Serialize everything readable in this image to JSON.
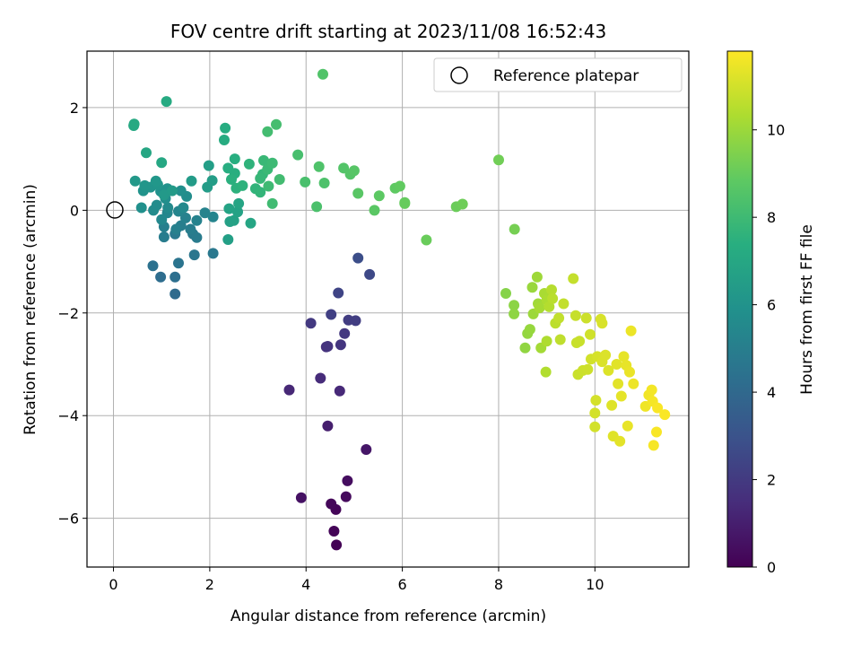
{
  "chart_data": {
    "type": "scatter",
    "title": "FOV centre drift starting at 2023/11/08 16:52:43",
    "xlabel": "Angular distance from reference (arcmin)",
    "ylabel": "Rotation from reference (arcmin)",
    "xlim": [
      -0.55,
      11.95
    ],
    "ylim": [
      -6.95,
      3.1
    ],
    "xticks": [
      0,
      2,
      4,
      6,
      8,
      10
    ],
    "yticks": [
      -6,
      -4,
      -2,
      0,
      2
    ],
    "grid": true,
    "legend": {
      "placement": "top-right",
      "entries": [
        "Reference platepar"
      ]
    },
    "reference_point": {
      "x": 0,
      "y": 0
    },
    "colorbar": {
      "label": "Hours from first FF file",
      "colormap": "viridis",
      "range": [
        0,
        11.8
      ],
      "ticks": [
        0,
        2,
        4,
        6,
        8,
        10
      ]
    },
    "points": [
      {
        "x": 4.63,
        "y": -6.52,
        "c": 0.05
      },
      {
        "x": 4.58,
        "y": -6.25,
        "c": 0.1
      },
      {
        "x": 4.62,
        "y": -5.83,
        "c": 0.15
      },
      {
        "x": 4.52,
        "y": -5.72,
        "c": 0.2
      },
      {
        "x": 4.83,
        "y": -5.58,
        "c": 0.3
      },
      {
        "x": 4.86,
        "y": -5.27,
        "c": 0.4
      },
      {
        "x": 3.9,
        "y": -5.6,
        "c": 0.55
      },
      {
        "x": 5.25,
        "y": -4.66,
        "c": 0.7
      },
      {
        "x": 4.45,
        "y": -4.2,
        "c": 1.0
      },
      {
        "x": 3.65,
        "y": -3.5,
        "c": 1.3
      },
      {
        "x": 4.7,
        "y": -3.52,
        "c": 1.35
      },
      {
        "x": 4.3,
        "y": -3.27,
        "c": 1.45
      },
      {
        "x": 4.42,
        "y": -2.66,
        "c": 1.65
      },
      {
        "x": 4.45,
        "y": -2.65,
        "c": 1.75
      },
      {
        "x": 4.72,
        "y": -2.62,
        "c": 1.8
      },
      {
        "x": 4.8,
        "y": -2.4,
        "c": 1.9
      },
      {
        "x": 4.1,
        "y": -2.2,
        "c": 1.95
      },
      {
        "x": 4.88,
        "y": -2.14,
        "c": 2.1
      },
      {
        "x": 5.03,
        "y": -2.15,
        "c": 2.15
      },
      {
        "x": 4.52,
        "y": -2.03,
        "c": 2.25
      },
      {
        "x": 4.67,
        "y": -1.61,
        "c": 2.4
      },
      {
        "x": 5.32,
        "y": -1.25,
        "c": 2.6
      },
      {
        "x": 5.08,
        "y": -0.93,
        "c": 2.8
      },
      {
        "x": 1.28,
        "y": -1.63,
        "c": 4.1
      },
      {
        "x": 0.98,
        "y": -1.3,
        "c": 4.2
      },
      {
        "x": 1.28,
        "y": -1.3,
        "c": 4.3
      },
      {
        "x": 0.82,
        "y": -1.08,
        "c": 4.4
      },
      {
        "x": 1.35,
        "y": -1.03,
        "c": 4.5
      },
      {
        "x": 1.68,
        "y": -0.87,
        "c": 4.6
      },
      {
        "x": 2.07,
        "y": -0.84,
        "c": 4.7
      },
      {
        "x": 1.28,
        "y": -0.46,
        "c": 4.75
      },
      {
        "x": 1.65,
        "y": -0.46,
        "c": 4.8
      },
      {
        "x": 1.73,
        "y": -0.53,
        "c": 4.85
      },
      {
        "x": 1.05,
        "y": -0.52,
        "c": 4.9
      },
      {
        "x": 1.6,
        "y": -0.37,
        "c": 4.95
      },
      {
        "x": 1.4,
        "y": -0.3,
        "c": 5.0
      },
      {
        "x": 1.05,
        "y": -0.32,
        "c": 5.05
      },
      {
        "x": 1.3,
        "y": -0.37,
        "c": 5.1
      },
      {
        "x": 1.5,
        "y": -0.15,
        "c": 5.15
      },
      {
        "x": 1.73,
        "y": -0.2,
        "c": 5.2
      },
      {
        "x": 1.9,
        "y": -0.05,
        "c": 5.25
      },
      {
        "x": 2.07,
        "y": -0.13,
        "c": 5.3
      },
      {
        "x": 1.35,
        "y": -0.02,
        "c": 5.35
      },
      {
        "x": 1.12,
        "y": -0.05,
        "c": 5.4
      },
      {
        "x": 1.0,
        "y": -0.18,
        "c": 5.45
      },
      {
        "x": 1.45,
        "y": 0.05,
        "c": 5.5
      },
      {
        "x": 1.13,
        "y": 0.05,
        "c": 5.55
      },
      {
        "x": 0.83,
        "y": 0.0,
        "c": 5.6
      },
      {
        "x": 0.9,
        "y": 0.1,
        "c": 5.65
      },
      {
        "x": 1.52,
        "y": 0.27,
        "c": 5.7
      },
      {
        "x": 1.08,
        "y": 0.23,
        "c": 5.75
      },
      {
        "x": 1.4,
        "y": 0.38,
        "c": 5.8
      },
      {
        "x": 0.58,
        "y": 0.05,
        "c": 5.85
      },
      {
        "x": 0.98,
        "y": 0.37,
        "c": 5.9
      },
      {
        "x": 1.12,
        "y": 0.42,
        "c": 5.95
      },
      {
        "x": 0.62,
        "y": 0.38,
        "c": 6.0
      },
      {
        "x": 0.77,
        "y": 0.45,
        "c": 6.05
      },
      {
        "x": 0.92,
        "y": 0.5,
        "c": 6.1
      },
      {
        "x": 0.65,
        "y": 0.48,
        "c": 6.15
      },
      {
        "x": 0.88,
        "y": 0.57,
        "c": 6.2
      },
      {
        "x": 0.45,
        "y": 0.57,
        "c": 6.25
      },
      {
        "x": 1.05,
        "y": 0.3,
        "c": 6.3
      },
      {
        "x": 1.22,
        "y": 0.38,
        "c": 6.35
      },
      {
        "x": 1.62,
        "y": 0.57,
        "c": 6.4
      },
      {
        "x": 1.95,
        "y": 0.45,
        "c": 6.45
      },
      {
        "x": 2.05,
        "y": 0.58,
        "c": 6.5
      },
      {
        "x": 1.98,
        "y": 0.87,
        "c": 6.55
      },
      {
        "x": 2.38,
        "y": -0.57,
        "c": 6.6
      },
      {
        "x": 2.42,
        "y": -0.22,
        "c": 6.65
      },
      {
        "x": 2.5,
        "y": -0.2,
        "c": 6.7
      },
      {
        "x": 2.58,
        "y": -0.03,
        "c": 6.75
      },
      {
        "x": 2.4,
        "y": 0.03,
        "c": 6.8
      },
      {
        "x": 2.6,
        "y": 0.13,
        "c": 6.85
      },
      {
        "x": 2.85,
        "y": -0.25,
        "c": 6.9
      },
      {
        "x": 0.68,
        "y": 1.12,
        "c": 6.95
      },
      {
        "x": 1.0,
        "y": 0.93,
        "c": 7.0
      },
      {
        "x": 0.42,
        "y": 1.65,
        "c": 7.05
      },
      {
        "x": 0.43,
        "y": 1.68,
        "c": 7.1
      },
      {
        "x": 1.1,
        "y": 2.12,
        "c": 7.15
      },
      {
        "x": 2.3,
        "y": 1.37,
        "c": 7.2
      },
      {
        "x": 2.32,
        "y": 1.6,
        "c": 7.25
      },
      {
        "x": 2.38,
        "y": 0.82,
        "c": 7.3
      },
      {
        "x": 2.52,
        "y": 1.0,
        "c": 7.35
      },
      {
        "x": 2.52,
        "y": 0.72,
        "c": 7.4
      },
      {
        "x": 2.45,
        "y": 0.6,
        "c": 7.45
      },
      {
        "x": 2.55,
        "y": 0.43,
        "c": 7.5
      },
      {
        "x": 2.68,
        "y": 0.48,
        "c": 7.55
      },
      {
        "x": 2.82,
        "y": 0.9,
        "c": 7.6
      },
      {
        "x": 2.95,
        "y": 0.42,
        "c": 7.65
      },
      {
        "x": 3.05,
        "y": 0.35,
        "c": 7.7
      },
      {
        "x": 3.1,
        "y": 0.7,
        "c": 7.75
      },
      {
        "x": 3.05,
        "y": 0.62,
        "c": 7.8
      },
      {
        "x": 3.12,
        "y": 0.97,
        "c": 7.85
      },
      {
        "x": 3.2,
        "y": 0.8,
        "c": 7.9
      },
      {
        "x": 3.3,
        "y": 0.92,
        "c": 7.95
      },
      {
        "x": 3.22,
        "y": 0.47,
        "c": 8.0
      },
      {
        "x": 3.3,
        "y": 0.13,
        "c": 8.05
      },
      {
        "x": 3.45,
        "y": 0.6,
        "c": 8.1
      },
      {
        "x": 3.2,
        "y": 1.53,
        "c": 8.15
      },
      {
        "x": 3.38,
        "y": 1.67,
        "c": 8.2
      },
      {
        "x": 3.83,
        "y": 1.08,
        "c": 8.25
      },
      {
        "x": 3.98,
        "y": 0.55,
        "c": 8.3
      },
      {
        "x": 4.22,
        "y": 0.07,
        "c": 8.35
      },
      {
        "x": 4.38,
        "y": 0.53,
        "c": 8.4
      },
      {
        "x": 4.27,
        "y": 0.85,
        "c": 8.45
      },
      {
        "x": 4.35,
        "y": 2.65,
        "c": 8.5
      },
      {
        "x": 4.78,
        "y": 0.82,
        "c": 8.55
      },
      {
        "x": 4.92,
        "y": 0.7,
        "c": 8.6
      },
      {
        "x": 5.0,
        "y": 0.77,
        "c": 8.65
      },
      {
        "x": 5.08,
        "y": 0.33,
        "c": 8.7
      },
      {
        "x": 5.42,
        "y": 0.0,
        "c": 8.75
      },
      {
        "x": 5.52,
        "y": 0.28,
        "c": 8.8
      },
      {
        "x": 5.85,
        "y": 0.43,
        "c": 8.85
      },
      {
        "x": 5.95,
        "y": 0.47,
        "c": 8.9
      },
      {
        "x": 6.05,
        "y": 0.15,
        "c": 8.95
      },
      {
        "x": 6.05,
        "y": 0.13,
        "c": 9.0
      },
      {
        "x": 6.5,
        "y": -0.58,
        "c": 9.05
      },
      {
        "x": 7.12,
        "y": 0.07,
        "c": 9.1
      },
      {
        "x": 7.25,
        "y": 0.12,
        "c": 9.15
      },
      {
        "x": 8.0,
        "y": 0.98,
        "c": 9.2
      },
      {
        "x": 8.33,
        "y": -0.37,
        "c": 9.3
      },
      {
        "x": 8.15,
        "y": -1.62,
        "c": 9.6
      },
      {
        "x": 8.32,
        "y": -1.85,
        "c": 9.7
      },
      {
        "x": 8.32,
        "y": -2.02,
        "c": 9.75
      },
      {
        "x": 8.55,
        "y": -2.68,
        "c": 9.8
      },
      {
        "x": 8.6,
        "y": -2.4,
        "c": 9.85
      },
      {
        "x": 8.65,
        "y": -2.32,
        "c": 9.9
      },
      {
        "x": 8.7,
        "y": -1.5,
        "c": 9.95
      },
      {
        "x": 8.72,
        "y": -2.02,
        "c": 10.0
      },
      {
        "x": 8.8,
        "y": -1.3,
        "c": 10.05
      },
      {
        "x": 8.82,
        "y": -1.82,
        "c": 10.1
      },
      {
        "x": 8.88,
        "y": -2.68,
        "c": 10.15
      },
      {
        "x": 8.85,
        "y": -1.9,
        "c": 10.2
      },
      {
        "x": 8.95,
        "y": -1.62,
        "c": 10.25
      },
      {
        "x": 9.0,
        "y": -1.75,
        "c": 10.3
      },
      {
        "x": 9.0,
        "y": -2.55,
        "c": 10.35
      },
      {
        "x": 8.98,
        "y": -3.15,
        "c": 10.4
      },
      {
        "x": 9.05,
        "y": -1.88,
        "c": 10.45
      },
      {
        "x": 9.1,
        "y": -1.55,
        "c": 10.5
      },
      {
        "x": 9.12,
        "y": -1.72,
        "c": 10.55
      },
      {
        "x": 9.18,
        "y": -2.2,
        "c": 10.6
      },
      {
        "x": 9.28,
        "y": -2.52,
        "c": 10.65
      },
      {
        "x": 9.25,
        "y": -2.1,
        "c": 10.7
      },
      {
        "x": 9.35,
        "y": -1.82,
        "c": 10.72
      },
      {
        "x": 9.55,
        "y": -1.33,
        "c": 10.75
      },
      {
        "x": 9.6,
        "y": -2.05,
        "c": 10.78
      },
      {
        "x": 9.62,
        "y": -2.58,
        "c": 10.8
      },
      {
        "x": 9.68,
        "y": -2.55,
        "c": 10.82
      },
      {
        "x": 9.65,
        "y": -3.2,
        "c": 10.85
      },
      {
        "x": 9.75,
        "y": -3.12,
        "c": 10.88
      },
      {
        "x": 9.82,
        "y": -2.1,
        "c": 10.9
      },
      {
        "x": 9.85,
        "y": -3.1,
        "c": 10.92
      },
      {
        "x": 9.9,
        "y": -2.42,
        "c": 10.95
      },
      {
        "x": 9.92,
        "y": -2.9,
        "c": 10.98
      },
      {
        "x": 10.0,
        "y": -4.22,
        "c": 11.0
      },
      {
        "x": 10.0,
        "y": -3.95,
        "c": 11.02
      },
      {
        "x": 10.02,
        "y": -3.7,
        "c": 11.05
      },
      {
        "x": 10.05,
        "y": -2.85,
        "c": 11.08
      },
      {
        "x": 10.12,
        "y": -2.12,
        "c": 11.1
      },
      {
        "x": 10.15,
        "y": -2.2,
        "c": 11.12
      },
      {
        "x": 10.15,
        "y": -2.95,
        "c": 11.15
      },
      {
        "x": 10.22,
        "y": -2.82,
        "c": 11.18
      },
      {
        "x": 10.28,
        "y": -3.12,
        "c": 11.2
      },
      {
        "x": 10.35,
        "y": -3.8,
        "c": 11.22
      },
      {
        "x": 10.38,
        "y": -4.4,
        "c": 11.25
      },
      {
        "x": 10.45,
        "y": -3.0,
        "c": 11.28
      },
      {
        "x": 10.48,
        "y": -3.38,
        "c": 11.3
      },
      {
        "x": 10.52,
        "y": -4.5,
        "c": 11.32
      },
      {
        "x": 10.55,
        "y": -3.62,
        "c": 11.35
      },
      {
        "x": 10.6,
        "y": -2.85,
        "c": 11.38
      },
      {
        "x": 10.65,
        "y": -3.02,
        "c": 11.4
      },
      {
        "x": 10.68,
        "y": -4.2,
        "c": 11.42
      },
      {
        "x": 10.72,
        "y": -3.15,
        "c": 11.45
      },
      {
        "x": 10.75,
        "y": -2.35,
        "c": 11.48
      },
      {
        "x": 10.8,
        "y": -3.38,
        "c": 11.5
      },
      {
        "x": 11.05,
        "y": -3.82,
        "c": 11.55
      },
      {
        "x": 11.12,
        "y": -3.6,
        "c": 11.58
      },
      {
        "x": 11.18,
        "y": -3.5,
        "c": 11.62
      },
      {
        "x": 11.2,
        "y": -3.72,
        "c": 11.65
      },
      {
        "x": 11.22,
        "y": -4.58,
        "c": 11.68
      },
      {
        "x": 11.28,
        "y": -4.32,
        "c": 11.7
      },
      {
        "x": 11.3,
        "y": -3.85,
        "c": 11.72
      },
      {
        "x": 11.45,
        "y": -3.98,
        "c": 11.75
      }
    ]
  }
}
